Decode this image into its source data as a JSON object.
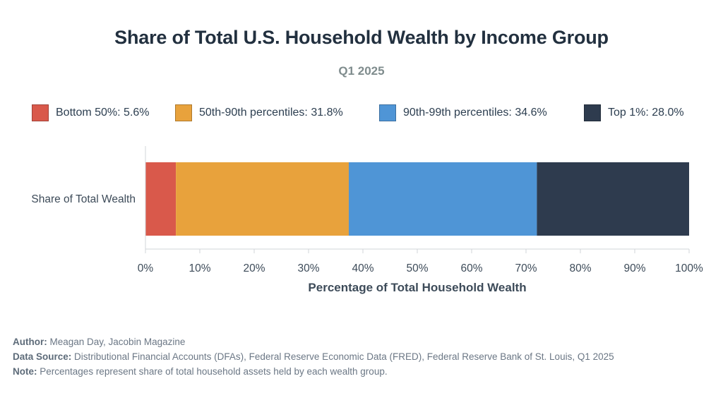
{
  "title": "Share of Total U.S. Household Wealth by Income Group",
  "subtitle": "Q1 2025",
  "legend": [
    {
      "label": "Bottom 50%: 5.6%",
      "color": "#d9594b"
    },
    {
      "label": "50th-90th percentiles: 31.8%",
      "color": "#e8a23c"
    },
    {
      "label": "90th-99th percentiles: 34.6%",
      "color": "#4f95d6"
    },
    {
      "label": "Top 1%: 28.0%",
      "color": "#2e3b4e"
    }
  ],
  "chart_data": {
    "type": "bar",
    "orientation": "horizontal",
    "stacked": true,
    "categories": [
      "Share of Total Wealth"
    ],
    "series": [
      {
        "name": "Bottom 50%",
        "values": [
          5.6
        ],
        "color": "#d9594b"
      },
      {
        "name": "50th-90th percentiles",
        "values": [
          31.8
        ],
        "color": "#e8a23c"
      },
      {
        "name": "90th-99th percentiles",
        "values": [
          34.6
        ],
        "color": "#4f95d6"
      },
      {
        "name": "Top 1%",
        "values": [
          28.0
        ],
        "color": "#2e3b4e"
      }
    ],
    "xlabel": "Percentage of Total Household Wealth",
    "ylabel": "",
    "xlim": [
      0,
      100
    ],
    "xticks": [
      "0%",
      "10%",
      "20%",
      "30%",
      "40%",
      "50%",
      "60%",
      "70%",
      "80%",
      "90%",
      "100%"
    ],
    "grid": false,
    "legend_position": "top"
  },
  "footer": {
    "author_label": "Author:",
    "author_value": "Meagan Day, Jacobin Magazine",
    "source_label": "Data Source:",
    "source_value": "Distributional Financial Accounts (DFAs), Federal Reserve Economic Data (FRED), Federal Reserve Bank of St. Louis, Q1 2025",
    "note_label": "Note:",
    "note_value": "Percentages represent share of total household assets held by each wealth group."
  }
}
